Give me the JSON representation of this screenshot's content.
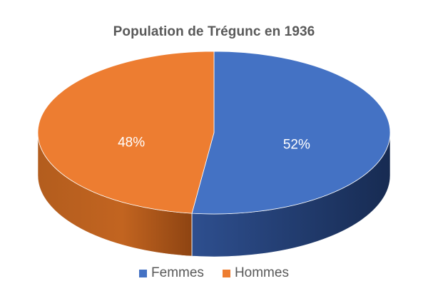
{
  "chart_data": {
    "type": "pie",
    "title": "Population de Trégunc en 1936",
    "slices": [
      {
        "name": "Femmes",
        "value": 52,
        "label": "52%",
        "color": "#4472C4",
        "side_color": "#1F3864"
      },
      {
        "name": "Hommes",
        "value": 48,
        "label": "48%",
        "color": "#ED7D31",
        "side_color": "#A9541C"
      }
    ],
    "style": "3d-pie",
    "legend": "bottom"
  }
}
